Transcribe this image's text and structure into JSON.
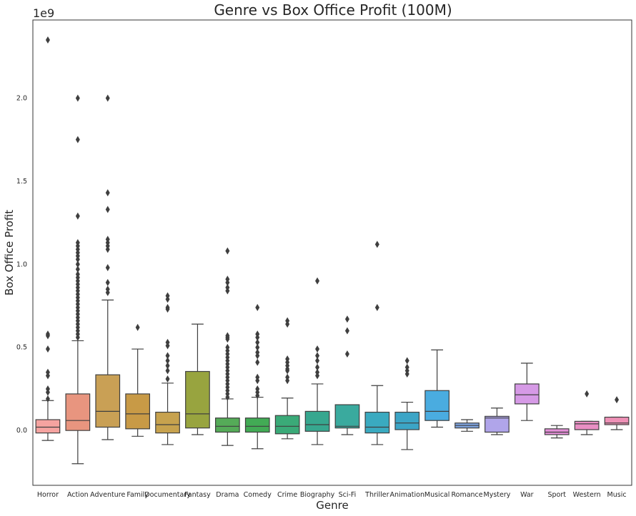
{
  "chart_data": {
    "type": "box",
    "title": "Genre vs Box Office Profit (100M)",
    "xlabel": "Genre",
    "ylabel": "Box Office Profit",
    "y_offset_label": "1e9",
    "y_scale": 1000000000,
    "ylim": [
      -0.33,
      2.47
    ],
    "yticks": [
      0.0,
      0.5,
      1.0,
      1.5,
      2.0
    ],
    "ytick_labels": [
      "0.0",
      "0.5",
      "1.0",
      "1.5",
      "2.0"
    ],
    "grid": false,
    "legend": "none",
    "categories": [
      "Horror",
      "Action",
      "Adventure",
      "Family",
      "Documentary",
      "Fantasy",
      "Drama",
      "Comedy",
      "Crime",
      "Biography",
      "Sci-Fi",
      "Thriller",
      "Animation",
      "Musical",
      "Romance",
      "Mystery",
      "War",
      "Sport",
      "Western",
      "Music"
    ],
    "colors": [
      "#f5a3a0",
      "#e8957f",
      "#c9a055",
      "#c89a46",
      "#c7a24e",
      "#98a43f",
      "#55ab58",
      "#42ab55",
      "#3aaa78",
      "#37a78f",
      "#3aaa9e",
      "#3aaac0",
      "#3ca5c6",
      "#4aace0",
      "#7fa5e0",
      "#b0a5ea",
      "#d69ae6",
      "#e48fd8",
      "#e98fc4",
      "#ee90b6"
    ],
    "boxes": [
      {
        "whislo": -0.06,
        "q1": -0.015,
        "med": 0.02,
        "q3": 0.065,
        "whishi": 0.18,
        "fliers": [
          2.35,
          0.58,
          0.57,
          0.49,
          0.35,
          0.33,
          0.25,
          0.23,
          0.19
        ]
      },
      {
        "whislo": -0.2,
        "q1": 0.0,
        "med": 0.06,
        "q3": 0.22,
        "whishi": 0.54,
        "fliers": [
          2.0,
          1.75,
          1.29,
          1.13,
          1.11,
          1.09,
          1.07,
          1.05,
          1.03,
          1.0,
          0.97,
          0.94,
          0.92,
          0.9,
          0.88,
          0.86,
          0.84,
          0.82,
          0.8,
          0.78,
          0.76,
          0.74,
          0.72,
          0.7,
          0.68,
          0.66,
          0.64,
          0.62,
          0.6,
          0.58,
          0.56
        ]
      },
      {
        "whislo": -0.055,
        "q1": 0.02,
        "med": 0.115,
        "q3": 0.335,
        "whishi": 0.785,
        "fliers": [
          2.0,
          1.43,
          1.33,
          1.15,
          1.13,
          1.11,
          1.09,
          0.98,
          0.89,
          0.85,
          0.83
        ]
      },
      {
        "whislo": -0.035,
        "q1": 0.01,
        "med": 0.1,
        "q3": 0.22,
        "whishi": 0.49,
        "fliers": [
          0.62
        ]
      },
      {
        "whislo": -0.085,
        "q1": -0.015,
        "med": 0.035,
        "q3": 0.11,
        "whishi": 0.285,
        "fliers": [
          0.81,
          0.79,
          0.74,
          0.73,
          0.53,
          0.51,
          0.45,
          0.42,
          0.39,
          0.36,
          0.31
        ]
      },
      {
        "whislo": -0.025,
        "q1": 0.015,
        "med": 0.1,
        "q3": 0.355,
        "whishi": 0.64,
        "fliers": []
      },
      {
        "whislo": -0.09,
        "q1": -0.01,
        "med": 0.025,
        "q3": 0.075,
        "whishi": 0.19,
        "fliers": [
          1.08,
          0.91,
          0.89,
          0.86,
          0.84,
          0.57,
          0.56,
          0.55,
          0.5,
          0.48,
          0.46,
          0.44,
          0.42,
          0.4,
          0.38,
          0.36,
          0.34,
          0.32,
          0.3,
          0.28,
          0.26,
          0.24,
          0.22,
          0.2
        ]
      },
      {
        "whislo": -0.11,
        "q1": -0.01,
        "med": 0.025,
        "q3": 0.075,
        "whishi": 0.2,
        "fliers": [
          0.74,
          0.58,
          0.56,
          0.53,
          0.5,
          0.47,
          0.45,
          0.41,
          0.32,
          0.3,
          0.25,
          0.23,
          0.21
        ]
      },
      {
        "whislo": -0.05,
        "q1": -0.02,
        "med": 0.025,
        "q3": 0.09,
        "whishi": 0.195,
        "fliers": [
          0.66,
          0.64,
          0.43,
          0.41,
          0.39,
          0.37,
          0.36,
          0.32,
          0.3
        ]
      },
      {
        "whislo": -0.085,
        "q1": -0.005,
        "med": 0.035,
        "q3": 0.115,
        "whishi": 0.28,
        "fliers": [
          0.9,
          0.49,
          0.45,
          0.42,
          0.38,
          0.35,
          0.33
        ]
      },
      {
        "whislo": -0.025,
        "q1": 0.015,
        "med": 0.025,
        "q3": 0.155,
        "whishi": 0.155,
        "fliers": [
          0.67,
          0.6,
          0.46
        ]
      },
      {
        "whislo": -0.085,
        "q1": -0.015,
        "med": 0.02,
        "q3": 0.11,
        "whishi": 0.27,
        "fliers": [
          1.12,
          0.74
        ]
      },
      {
        "whislo": -0.115,
        "q1": 0.005,
        "med": 0.045,
        "q3": 0.11,
        "whishi": 0.17,
        "fliers": [
          0.42,
          0.38,
          0.36,
          0.34
        ]
      },
      {
        "whislo": 0.02,
        "q1": 0.06,
        "med": 0.115,
        "q3": 0.24,
        "whishi": 0.485,
        "fliers": []
      },
      {
        "whislo": -0.005,
        "q1": 0.015,
        "med": 0.03,
        "q3": 0.045,
        "whishi": 0.065,
        "fliers": []
      },
      {
        "whislo": -0.025,
        "q1": -0.01,
        "med": 0.075,
        "q3": 0.085,
        "whishi": 0.135,
        "fliers": []
      },
      {
        "whislo": 0.06,
        "q1": 0.16,
        "med": 0.215,
        "q3": 0.28,
        "whishi": 0.405,
        "fliers": []
      },
      {
        "whislo": -0.045,
        "q1": -0.025,
        "med": -0.01,
        "q3": 0.01,
        "whishi": 0.03,
        "fliers": []
      },
      {
        "whislo": -0.025,
        "q1": 0.005,
        "med": 0.04,
        "q3": 0.055,
        "whishi": 0.055,
        "fliers": [
          0.22
        ]
      },
      {
        "whislo": 0.005,
        "q1": 0.035,
        "med": 0.045,
        "q3": 0.08,
        "whishi": 0.08,
        "fliers": [
          0.185
        ]
      }
    ]
  }
}
